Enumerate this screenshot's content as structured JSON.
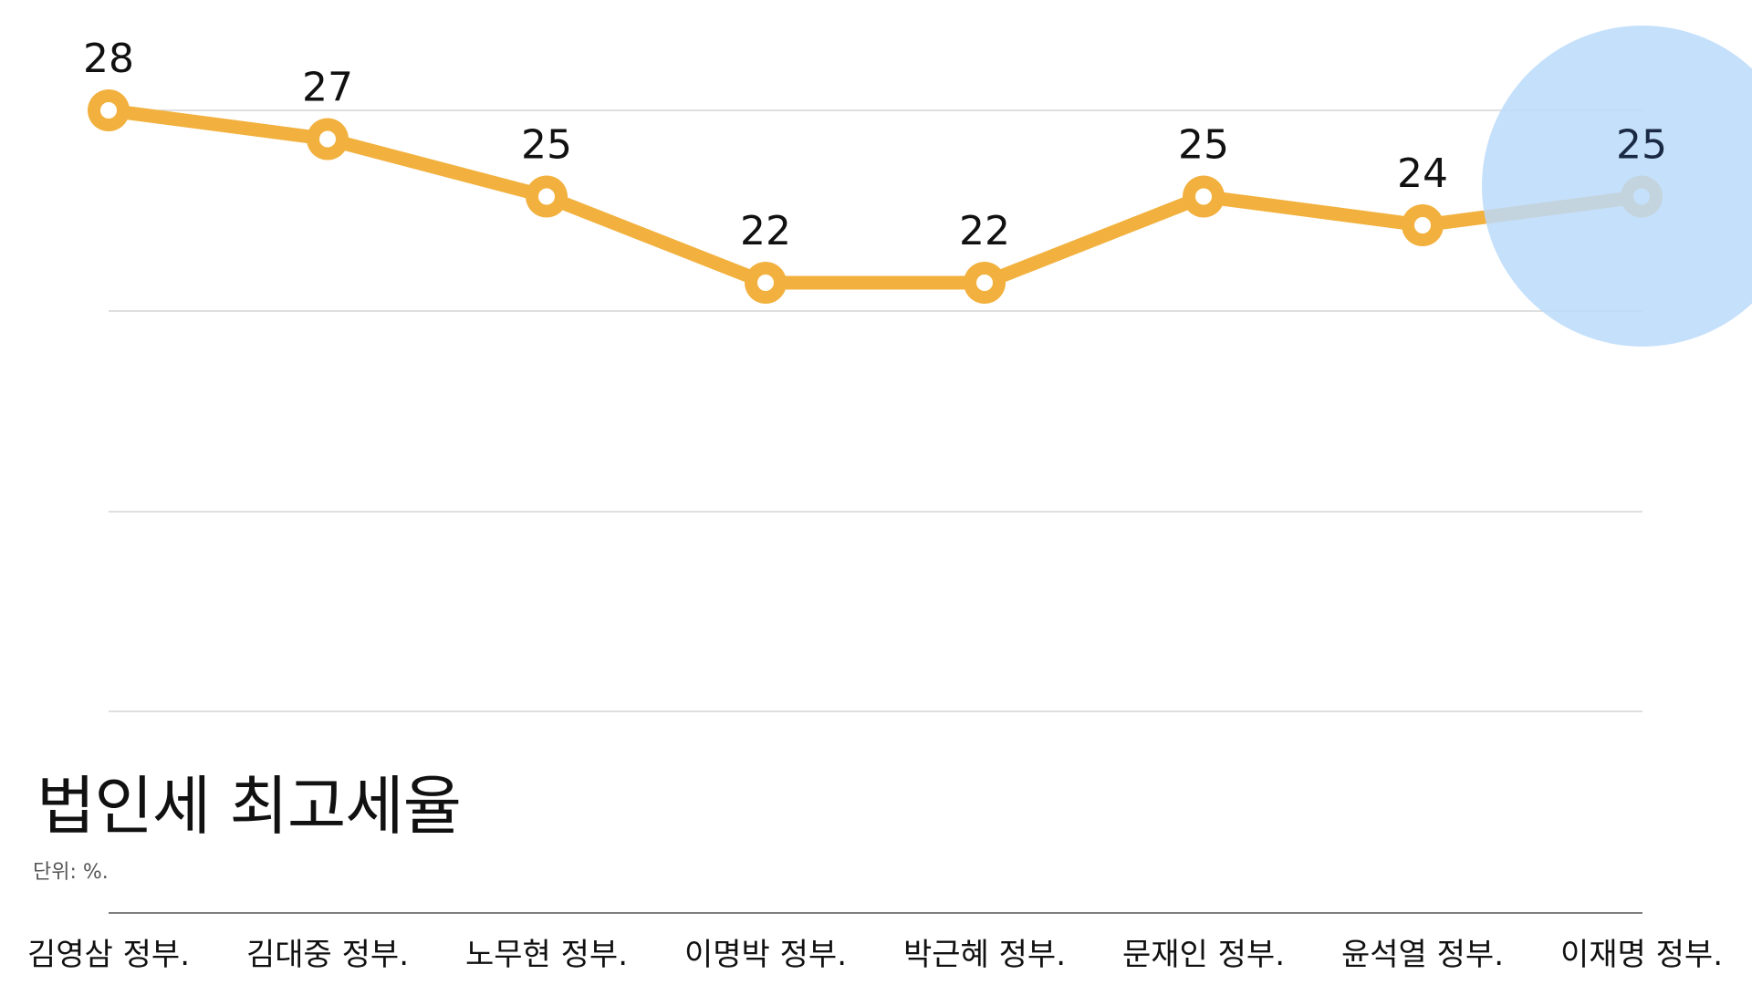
{
  "chart_data": {
    "type": "line",
    "title": "법인세 최고세율",
    "unit": "단위: %.",
    "categories": [
      "김영삼 정부.",
      "김대중 정부.",
      "노무현 정부.",
      "이명박 정부.",
      "박근혜 정부.",
      "문재인 정부.",
      "윤석열 정부.",
      "이재명 정부."
    ],
    "series": [
      {
        "values": [
          28,
          27,
          25,
          22,
          22,
          25,
          24,
          25
        ]
      }
    ],
    "data_labels": [
      "28",
      "27",
      "25",
      "22",
      "22",
      "25",
      "24",
      "25"
    ],
    "ylim": [
      0,
      28
    ],
    "grid": true,
    "highlight_index": 7,
    "colors": {
      "line": "#F2B13E",
      "highlight": "#BBDAFA",
      "grid": "#CCCCCC",
      "axis": "#555555",
      "text": "#111111"
    }
  }
}
